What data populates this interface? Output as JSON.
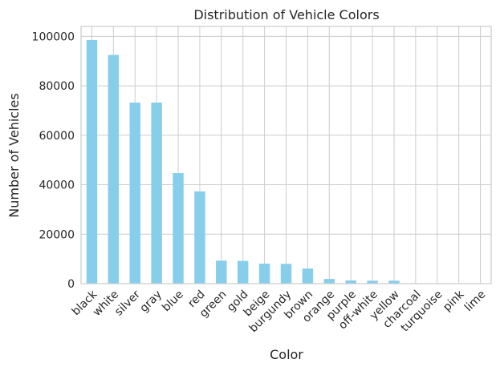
{
  "chart_data": {
    "type": "bar",
    "title": "Distribution of Vehicle Colors",
    "xlabel": "Color",
    "ylabel": "Number of Vehicles",
    "categories": [
      "black",
      "white",
      "silver",
      "gray",
      "blue",
      "red",
      "green",
      "gold",
      "beige",
      "burgundy",
      "brown",
      "orange",
      "purple",
      "off-white",
      "yellow",
      "charcoal",
      "turquoise",
      "pink",
      "lime"
    ],
    "values": [
      98500,
      92500,
      73200,
      73200,
      44700,
      37300,
      9300,
      9200,
      8100,
      8000,
      6100,
      1900,
      1300,
      1200,
      1200,
      200,
      100,
      80,
      50
    ],
    "ylim": [
      0,
      104000
    ],
    "yticks": [
      0,
      20000,
      40000,
      60000,
      80000,
      100000
    ],
    "grid": true,
    "bar_color": "#87ceeb",
    "background": "#ffffff",
    "grid_color": "#cccccc"
  }
}
